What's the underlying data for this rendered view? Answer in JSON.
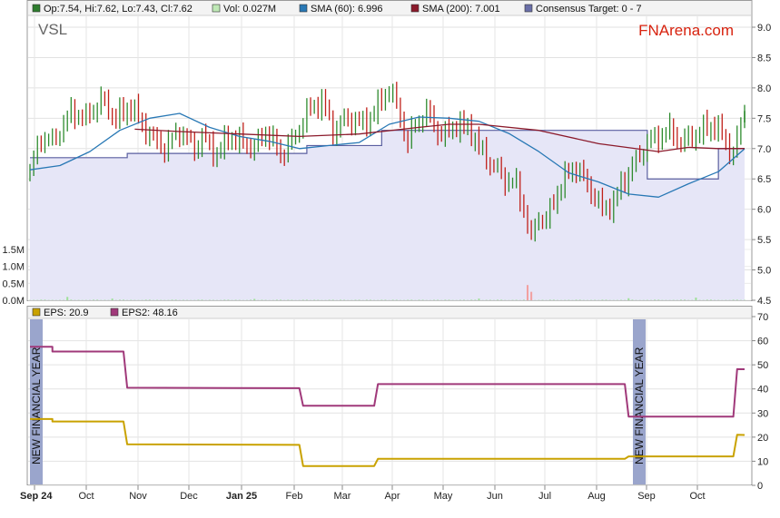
{
  "ticker": "VSL",
  "brand": "FNArena.com",
  "legend_top": [
    {
      "swatch_color": "#2e7d2e",
      "text": "Op:7.54, Hi:7.62, Lo:7.43, Cl:7.62"
    },
    {
      "swatch_color": "#bfe8b6",
      "text": "Vol: 0.027M"
    },
    {
      "swatch_color": "#2878b5",
      "text": "SMA (60): 6.996"
    },
    {
      "swatch_color": "#8b1a2b",
      "text": "SMA (200): 7.001"
    },
    {
      "swatch_color": "#6a6fa8",
      "text": "Consensus Target: 0 - 7"
    }
  ],
  "legend_bottom": [
    {
      "swatch_color": "#c9a200",
      "text": "EPS: 20.9"
    },
    {
      "swatch_color": "#a0397a",
      "text": "EPS2: 48.16"
    }
  ],
  "fy_marker_label": "NEW FINANCIAL YEAR",
  "colors": {
    "up": "#2e8b2e",
    "down": "#c0201a",
    "sma60": "#2878b5",
    "sma200": "#8b1a2b",
    "target_line": "#5a5fa0",
    "target_fill": "#e6e6f7",
    "volume": "#9fe09a",
    "eps": "#c9a200",
    "eps2": "#a0397a",
    "fy_band": "#9aa5cc",
    "brand": "#d8230f"
  },
  "chart_data": [
    {
      "type": "candlestick",
      "title": "VSL",
      "x_labels": [
        "Sep 24",
        "Oct",
        "Nov",
        "Dec",
        "Jan 25",
        "Feb",
        "Mar",
        "Apr",
        "May",
        "Jun",
        "Jul",
        "Aug",
        "Sep",
        "Oct"
      ],
      "y_axis_right": {
        "ylim": [
          4.5,
          9.0
        ],
        "ticks": [
          "9.0",
          "8.5",
          "8.0",
          "7.5",
          "7.0",
          "6.5",
          "6.0",
          "5.5",
          "5.0",
          "4.5"
        ]
      },
      "volume_axis_left": {
        "ticks": [
          "1.5M",
          "1.0M",
          "0.5M",
          "0.0M"
        ],
        "ylim": [
          0,
          1.5
        ]
      },
      "grid": true,
      "close_path": [
        [
          0,
          6.6
        ],
        [
          3,
          7.2
        ],
        [
          6,
          7.1
        ],
        [
          11,
          7.6
        ],
        [
          15,
          7.5
        ],
        [
          19,
          7.8
        ],
        [
          23,
          7.5
        ],
        [
          27,
          7.7
        ],
        [
          31,
          7.3
        ],
        [
          34,
          7.1
        ],
        [
          36,
          7.0
        ],
        [
          40,
          7.3
        ],
        [
          44,
          7.0
        ],
        [
          46,
          7.2
        ],
        [
          50,
          6.9
        ],
        [
          53,
          7.2
        ],
        [
          57,
          7.1
        ],
        [
          60,
          7.0
        ],
        [
          63,
          7.3
        ],
        [
          67,
          6.9
        ],
        [
          71,
          7.2
        ],
        [
          74,
          7.6
        ],
        [
          78,
          7.8
        ],
        [
          81,
          7.3
        ],
        [
          85,
          7.5
        ],
        [
          89,
          7.4
        ],
        [
          92,
          7.6
        ],
        [
          96,
          8.0
        ],
        [
          98,
          7.7
        ],
        [
          101,
          7.1
        ],
        [
          103,
          7.4
        ],
        [
          106,
          7.6
        ],
        [
          110,
          7.2
        ],
        [
          114,
          7.4
        ],
        [
          118,
          7.3
        ],
        [
          120,
          7.0
        ],
        [
          124,
          6.7
        ],
        [
          127,
          6.5
        ],
        [
          130,
          6.4
        ],
        [
          132,
          6.0
        ],
        [
          134,
          5.5
        ],
        [
          136,
          5.9
        ],
        [
          138,
          5.8
        ],
        [
          141,
          6.3
        ],
        [
          144,
          6.6
        ],
        [
          146,
          6.7
        ],
        [
          148,
          6.5
        ],
        [
          150,
          6.3
        ],
        [
          153,
          6.0
        ],
        [
          156,
          6.1
        ],
        [
          158,
          6.4
        ],
        [
          161,
          6.7
        ],
        [
          163,
          6.9
        ],
        [
          165,
          7.1
        ],
        [
          168,
          7.2
        ],
        [
          171,
          7.3
        ],
        [
          174,
          7.1
        ],
        [
          177,
          7.2
        ],
        [
          180,
          7.3
        ],
        [
          183,
          7.4
        ],
        [
          186,
          7.1
        ],
        [
          188,
          6.9
        ],
        [
          190,
          7.4
        ],
        [
          191,
          7.62
        ]
      ],
      "sma60": [
        [
          0,
          6.65
        ],
        [
          8,
          6.72
        ],
        [
          16,
          6.95
        ],
        [
          24,
          7.3
        ],
        [
          32,
          7.5
        ],
        [
          40,
          7.58
        ],
        [
          48,
          7.35
        ],
        [
          56,
          7.2
        ],
        [
          64,
          7.12
        ],
        [
          72,
          7.0
        ],
        [
          80,
          7.05
        ],
        [
          88,
          7.1
        ],
        [
          96,
          7.4
        ],
        [
          104,
          7.52
        ],
        [
          112,
          7.5
        ],
        [
          120,
          7.45
        ],
        [
          128,
          7.25
        ],
        [
          136,
          6.95
        ],
        [
          144,
          6.6
        ],
        [
          152,
          6.45
        ],
        [
          160,
          6.25
        ],
        [
          168,
          6.2
        ],
        [
          176,
          6.42
        ],
        [
          184,
          6.62
        ],
        [
          191,
          6.996
        ]
      ],
      "sma200": [
        [
          28,
          7.32
        ],
        [
          40,
          7.28
        ],
        [
          56,
          7.24
        ],
        [
          72,
          7.2
        ],
        [
          88,
          7.24
        ],
        [
          104,
          7.35
        ],
        [
          112,
          7.4
        ],
        [
          120,
          7.4
        ],
        [
          136,
          7.3
        ],
        [
          152,
          7.08
        ],
        [
          168,
          6.95
        ],
        [
          176,
          7.02
        ],
        [
          184,
          7.0
        ],
        [
          191,
          7.001
        ]
      ],
      "consensus_target": [
        [
          0,
          6.85
        ],
        [
          26,
          6.85
        ],
        [
          26,
          6.92
        ],
        [
          74,
          6.92
        ],
        [
          74,
          7.05
        ],
        [
          94,
          7.05
        ],
        [
          94,
          7.3
        ],
        [
          165,
          7.3
        ],
        [
          165,
          6.5
        ],
        [
          184,
          6.5
        ],
        [
          184,
          7.0
        ],
        [
          191,
          7.0
        ]
      ],
      "volume_spikes": [
        [
          10,
          0.1
        ],
        [
          22,
          0.05
        ],
        [
          60,
          0.04
        ],
        [
          120,
          0.05
        ],
        [
          133,
          0.45
        ],
        [
          134,
          0.25
        ],
        [
          160,
          0.06
        ],
        [
          178,
          0.08
        ]
      ]
    },
    {
      "type": "line",
      "y_axis_right": {
        "ylim": [
          0,
          70
        ],
        "ticks": [
          "70",
          "60",
          "50",
          "40",
          "30",
          "20",
          "10",
          "0"
        ]
      },
      "x_labels": [
        "Sep 24",
        "Oct",
        "Nov",
        "Dec",
        "Jan 25",
        "Feb",
        "Mar",
        "Apr",
        "May",
        "Jun",
        "Jul",
        "Aug",
        "Sep",
        "Oct"
      ],
      "series": [
        {
          "name": "EPS2",
          "values": [
            [
              0,
              57.5
            ],
            [
              6,
              57.5
            ],
            [
              6,
              55.5
            ],
            [
              25,
              55.5
            ],
            [
              26,
              40.5
            ],
            [
              72,
              40.3
            ],
            [
              73,
              33
            ],
            [
              92,
              33
            ],
            [
              93,
              42
            ],
            [
              159,
              42
            ],
            [
              160,
              28.5
            ],
            [
              188,
              28.5
            ],
            [
              189,
              48.2
            ],
            [
              191,
              48.16
            ]
          ]
        },
        {
          "name": "EPS",
          "values": [
            [
              0,
              27.5
            ],
            [
              6,
              27.5
            ],
            [
              6,
              26.5
            ],
            [
              25,
              26.5
            ],
            [
              26,
              17
            ],
            [
              72,
              16.8
            ],
            [
              73,
              8
            ],
            [
              92,
              8
            ],
            [
              93,
              11
            ],
            [
              159,
              11
            ],
            [
              160,
              12
            ],
            [
              188,
              12
            ],
            [
              189,
              21
            ],
            [
              191,
              20.9
            ]
          ]
        }
      ],
      "annotations": [
        "NEW FINANCIAL YEAR",
        "NEW FINANCIAL YEAR"
      ]
    }
  ]
}
